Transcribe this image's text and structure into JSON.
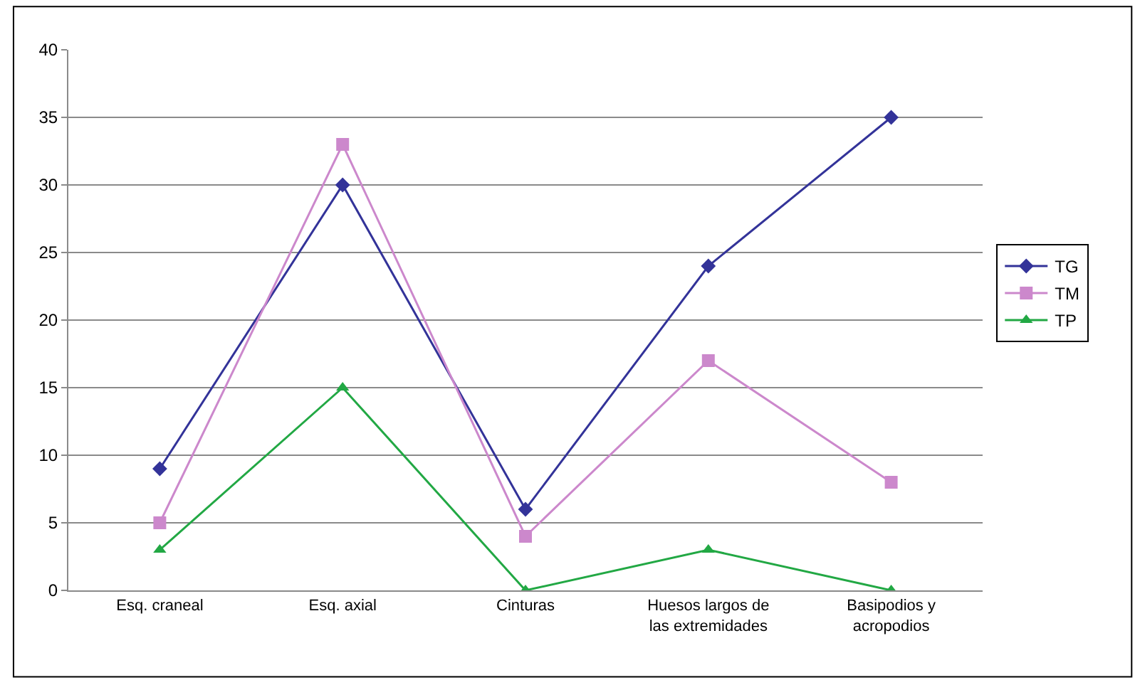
{
  "chart_data": {
    "type": "line",
    "categories": [
      "Esq. craneal",
      "Esq. axial",
      "Cinturas",
      "Huesos largos de\nlas extremidades",
      "Basipodios y\nacropodios"
    ],
    "series": [
      {
        "name": "TG",
        "color": "#333399",
        "marker": "diamond",
        "values": [
          9,
          30,
          6,
          24,
          35
        ]
      },
      {
        "name": "TM",
        "color": "#cc88cc",
        "marker": "square",
        "values": [
          5,
          33,
          4,
          17,
          8
        ]
      },
      {
        "name": "TP",
        "color": "#22a844",
        "marker": "triangle",
        "values": [
          3,
          15,
          0,
          3,
          0
        ]
      }
    ],
    "ylim": [
      0,
      40
    ],
    "yticks": [
      0,
      5,
      10,
      15,
      20,
      25,
      30,
      35,
      40
    ],
    "grid": "y",
    "legend": "right",
    "line_style": "solid"
  }
}
